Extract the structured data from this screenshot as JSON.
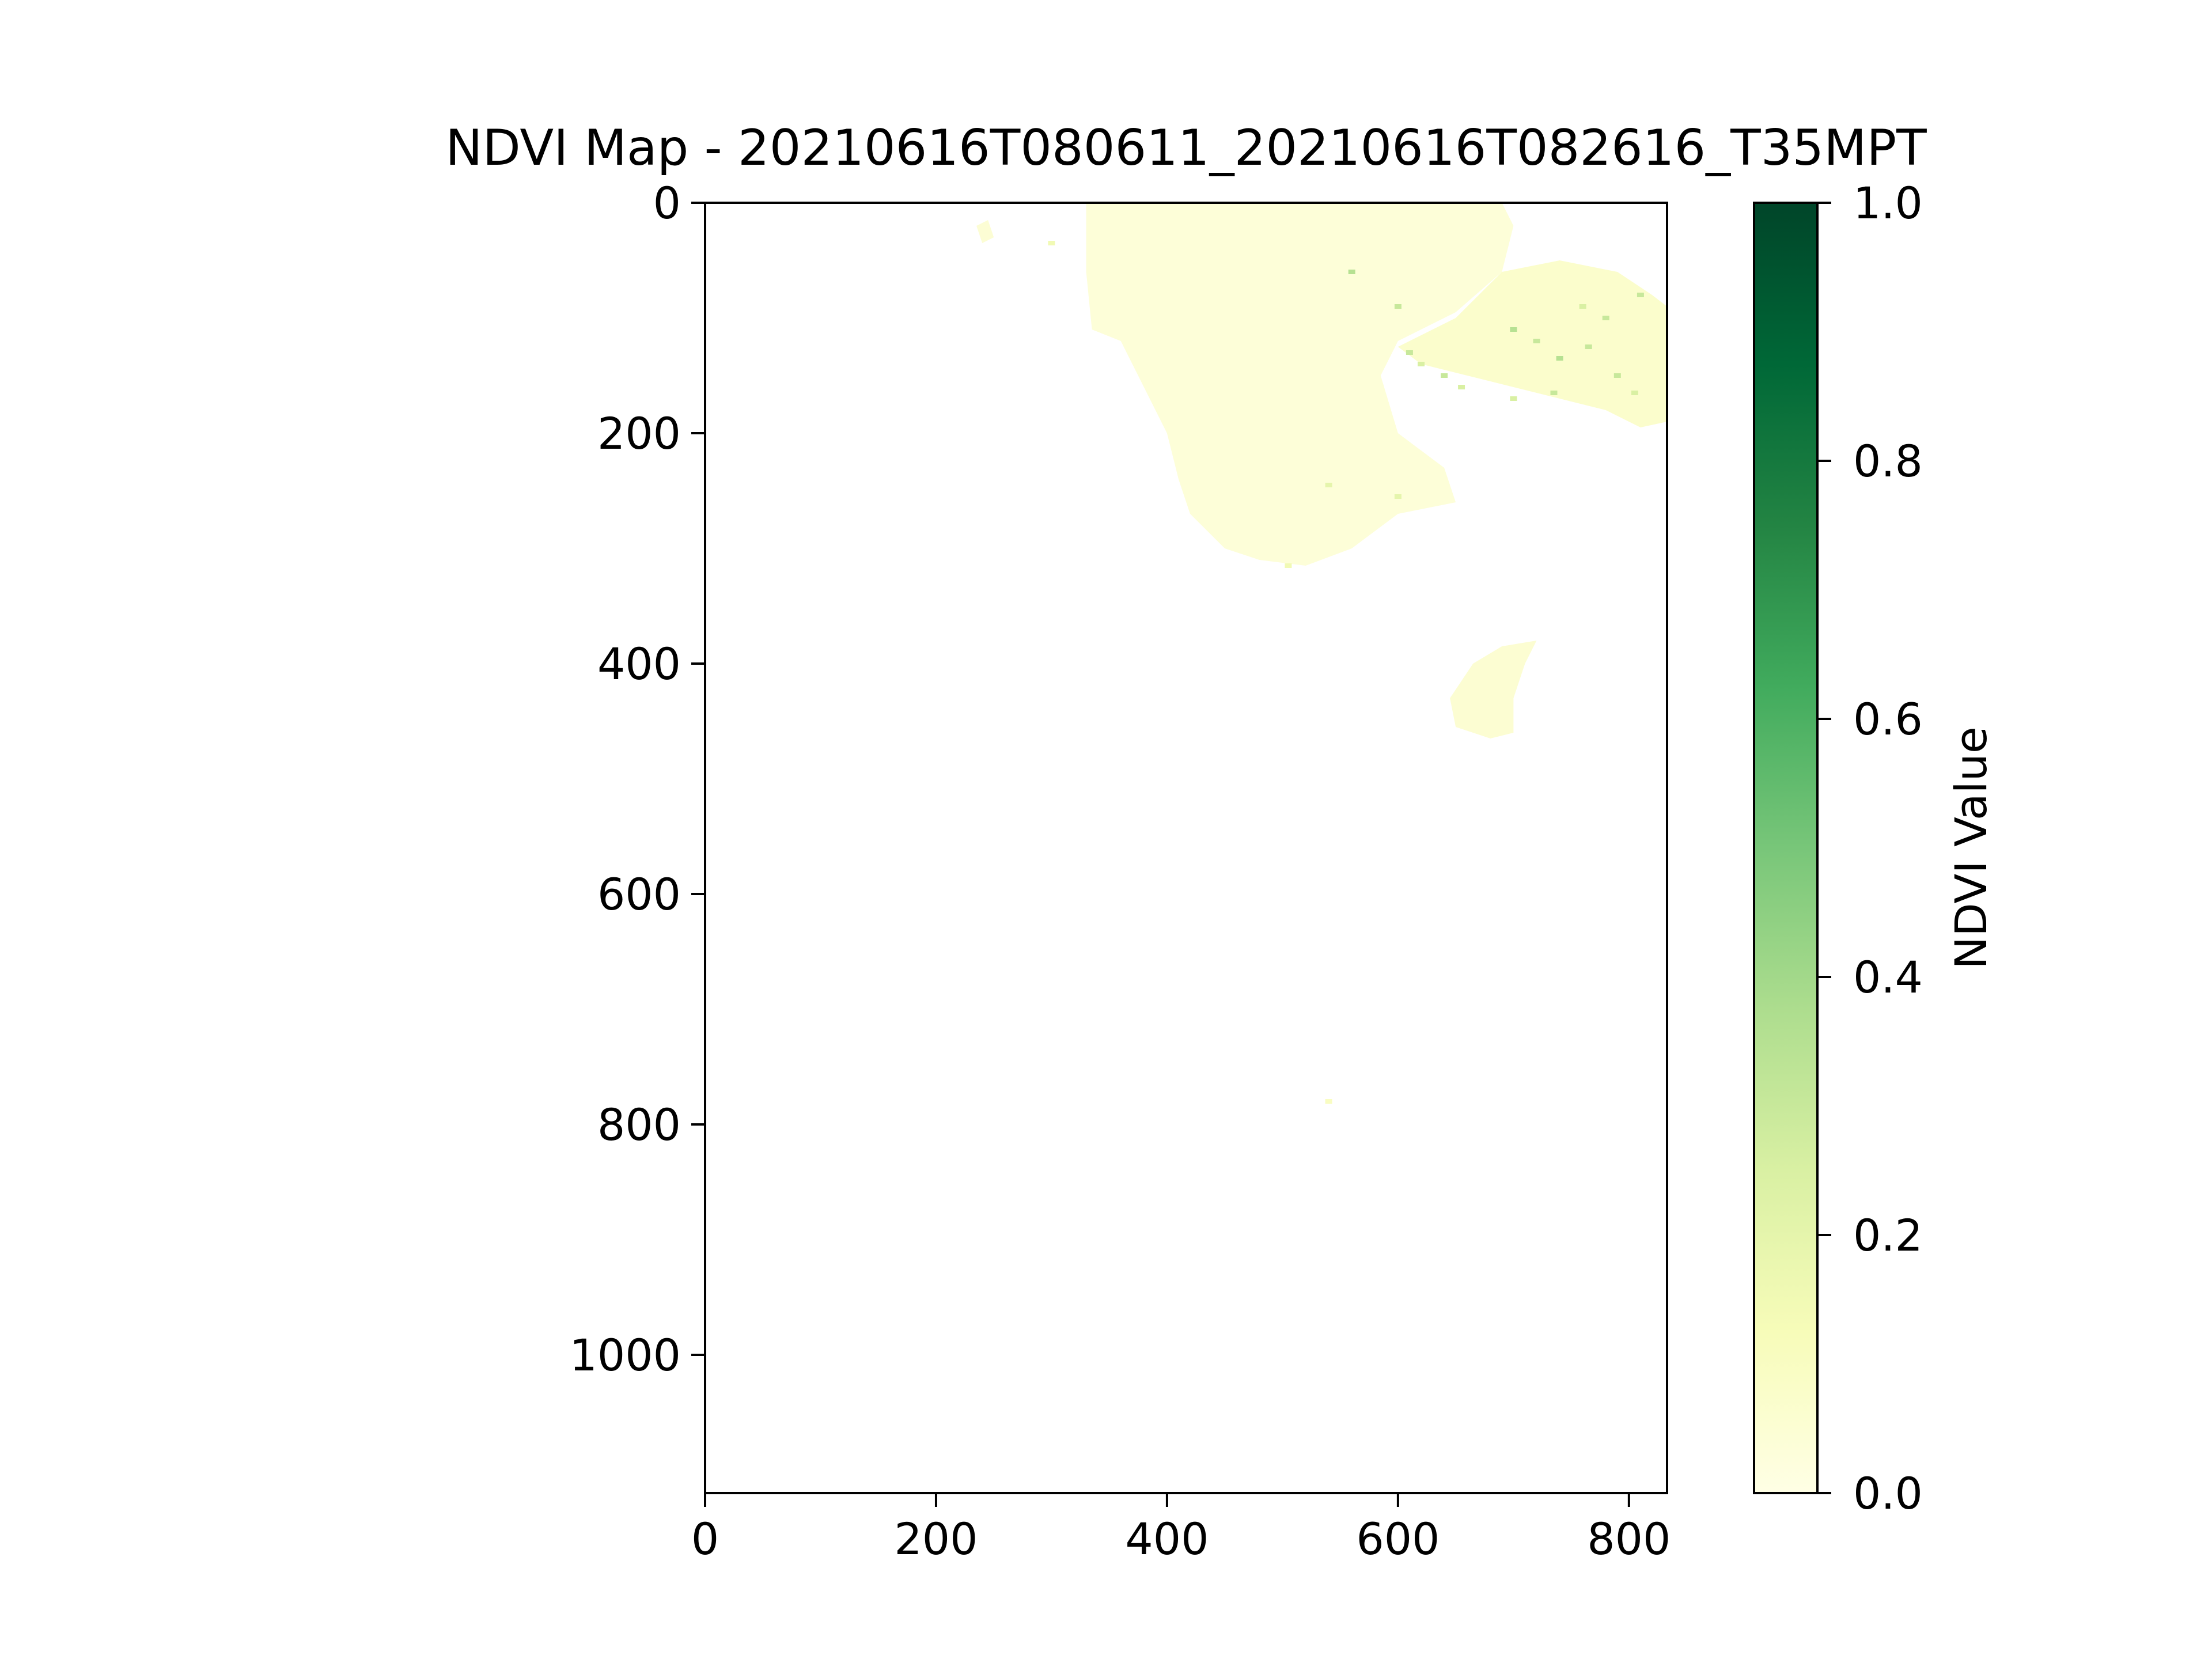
{
  "chart_data": {
    "type": "heatmap",
    "title": "NDVI Map - 20210616T080611_20210616T082616_T35MPT",
    "xlabel": "",
    "ylabel": "",
    "xlim": [
      0,
      833
    ],
    "ylim": [
      1120,
      0
    ],
    "x_ticks": [
      0,
      200,
      400,
      600,
      800
    ],
    "y_ticks": [
      0,
      200,
      400,
      600,
      800,
      1000
    ],
    "grid": false,
    "colormap": "YlGn",
    "colorbar": {
      "label": "NDVI Value",
      "range": [
        0.0,
        1.0
      ],
      "ticks": [
        "0.0",
        "0.2",
        "0.4",
        "0.6",
        "0.8",
        "1.0"
      ],
      "colors": [
        "#ffffe5",
        "#f7fcb9",
        "#d9f0a3",
        "#addd8e",
        "#78c679",
        "#41ab5d",
        "#238443",
        "#006837",
        "#004529"
      ]
    },
    "description_of_values": "Most of the grid is blank (no data); NDVI values present in the upper-right region are low, around 0.0-0.1, with scattered specks up to about 0.3-0.4.",
    "regions": [
      {
        "name": "main-landmass",
        "ndvi": 0.05,
        "color": "#fdfed8",
        "outline": [
          [
            330,
            0
          ],
          [
            690,
            0
          ],
          [
            700,
            20
          ],
          [
            690,
            60
          ],
          [
            650,
            95
          ],
          [
            600,
            120
          ],
          [
            585,
            150
          ],
          [
            600,
            200
          ],
          [
            640,
            230
          ],
          [
            650,
            260
          ],
          [
            600,
            270
          ],
          [
            560,
            300
          ],
          [
            520,
            315
          ],
          [
            480,
            310
          ],
          [
            450,
            300
          ],
          [
            420,
            270
          ],
          [
            410,
            240
          ],
          [
            400,
            200
          ],
          [
            380,
            160
          ],
          [
            360,
            120
          ],
          [
            335,
            110
          ],
          [
            330,
            60
          ]
        ]
      },
      {
        "name": "northeast-strip",
        "ndvi": 0.08,
        "color": "#fbfdcc",
        "outline": [
          [
            690,
            60
          ],
          [
            740,
            50
          ],
          [
            790,
            60
          ],
          [
            820,
            80
          ],
          [
            833,
            90
          ],
          [
            833,
            190
          ],
          [
            810,
            195
          ],
          [
            780,
            180
          ],
          [
            740,
            170
          ],
          [
            700,
            160
          ],
          [
            660,
            150
          ],
          [
            620,
            140
          ],
          [
            600,
            125
          ],
          [
            650,
            100
          ]
        ]
      },
      {
        "name": "southeast-patch",
        "ndvi": 0.06,
        "color": "#fcfdd2",
        "outline": [
          [
            690,
            385
          ],
          [
            720,
            380
          ],
          [
            710,
            400
          ],
          [
            700,
            430
          ],
          [
            700,
            460
          ],
          [
            680,
            465
          ],
          [
            650,
            455
          ],
          [
            645,
            430
          ],
          [
            665,
            400
          ]
        ]
      },
      {
        "name": "top-islet",
        "ndvi": 0.05,
        "color": "#fcfdd4",
        "outline": [
          [
            235,
            20
          ],
          [
            245,
            15
          ],
          [
            250,
            30
          ],
          [
            240,
            35
          ]
        ]
      }
    ],
    "specks": [
      [
        560,
        60,
        0.35
      ],
      [
        600,
        90,
        0.3
      ],
      [
        610,
        130,
        0.3
      ],
      [
        620,
        140,
        0.25
      ],
      [
        640,
        150,
        0.3
      ],
      [
        655,
        160,
        0.25
      ],
      [
        700,
        110,
        0.35
      ],
      [
        720,
        120,
        0.3
      ],
      [
        740,
        135,
        0.35
      ],
      [
        765,
        125,
        0.3
      ],
      [
        790,
        150,
        0.3
      ],
      [
        805,
        165,
        0.25
      ],
      [
        780,
        100,
        0.3
      ],
      [
        760,
        90,
        0.25
      ],
      [
        810,
        80,
        0.3
      ],
      [
        700,
        170,
        0.25
      ],
      [
        735,
        165,
        0.3
      ],
      [
        540,
        245,
        0.2
      ],
      [
        600,
        255,
        0.2
      ],
      [
        505,
        315,
        0.15
      ],
      [
        540,
        780,
        0.1
      ],
      [
        300,
        35,
        0.15
      ]
    ]
  }
}
